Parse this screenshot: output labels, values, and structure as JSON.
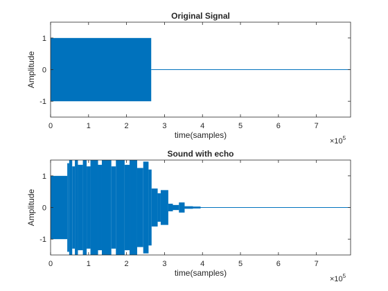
{
  "chart_data": [
    {
      "type": "line",
      "title": "Original Signal",
      "xlabel": "time(samples)",
      "ylabel": "Amplitude",
      "xlim": [
        0,
        790000
      ],
      "ylim": [
        -1.5,
        1.5
      ],
      "xticks": [
        0,
        100000,
        200000,
        300000,
        400000,
        500000,
        600000,
        700000
      ],
      "xtick_labels": [
        "0",
        "1",
        "2",
        "3",
        "4",
        "5",
        "6",
        "7"
      ],
      "yticks": [
        1,
        0,
        -1
      ],
      "ytick_labels": [
        "1",
        "0",
        "-1"
      ],
      "x_exponent": {
        "base": "×10",
        "power": "5"
      },
      "color": "#0072BD",
      "envelope": [
        {
          "x0": 0,
          "x1": 265000,
          "min": -1,
          "max": 1
        }
      ],
      "baseline_end": 790000
    },
    {
      "type": "line",
      "title": "Sound with echo",
      "xlabel": "time(samples)",
      "ylabel": "Amplitude",
      "xlim": [
        0,
        790000
      ],
      "ylim": [
        -1.5,
        1.5
      ],
      "xticks": [
        0,
        100000,
        200000,
        300000,
        400000,
        500000,
        600000,
        700000
      ],
      "xtick_labels": [
        "0",
        "1",
        "2",
        "3",
        "4",
        "5",
        "6",
        "7"
      ],
      "yticks": [
        1,
        0,
        -1
      ],
      "ytick_labels": [
        "1",
        "0",
        "-1"
      ],
      "x_exponent": {
        "base": "×10",
        "power": "5"
      },
      "color": "#0072BD",
      "envelope": [
        {
          "x0": 0,
          "x1": 44000,
          "min": -1,
          "max": 1
        },
        {
          "x0": 44000,
          "x1": 49000,
          "min": -1.4,
          "max": 1.4
        },
        {
          "x0": 49000,
          "x1": 57000,
          "min": -1.5,
          "max": 1.5
        },
        {
          "x0": 57000,
          "x1": 64000,
          "min": -1.3,
          "max": 1.3
        },
        {
          "x0": 64000,
          "x1": 72000,
          "min": -1.5,
          "max": 1.5
        },
        {
          "x0": 72000,
          "x1": 85000,
          "min": -1.35,
          "max": 1.35
        },
        {
          "x0": 85000,
          "x1": 95000,
          "min": -1.5,
          "max": 1.5
        },
        {
          "x0": 95000,
          "x1": 105000,
          "min": -1.3,
          "max": 1.3
        },
        {
          "x0": 105000,
          "x1": 125000,
          "min": -1.5,
          "max": 1.5
        },
        {
          "x0": 125000,
          "x1": 135000,
          "min": -1.35,
          "max": 1.35
        },
        {
          "x0": 135000,
          "x1": 160000,
          "min": -1.5,
          "max": 1.5
        },
        {
          "x0": 160000,
          "x1": 172000,
          "min": -1.3,
          "max": 1.3
        },
        {
          "x0": 172000,
          "x1": 195000,
          "min": -1.5,
          "max": 1.5
        },
        {
          "x0": 195000,
          "x1": 208000,
          "min": -1.35,
          "max": 1.35
        },
        {
          "x0": 208000,
          "x1": 228000,
          "min": -1.5,
          "max": 1.5
        },
        {
          "x0": 228000,
          "x1": 244000,
          "min": -1.25,
          "max": 1.25
        },
        {
          "x0": 244000,
          "x1": 258000,
          "min": -1.45,
          "max": 1.45
        },
        {
          "x0": 258000,
          "x1": 266000,
          "min": -1.2,
          "max": 1.2
        },
        {
          "x0": 266000,
          "x1": 282000,
          "min": -0.6,
          "max": 0.6
        },
        {
          "x0": 282000,
          "x1": 290000,
          "min": -0.45,
          "max": 0.45
        },
        {
          "x0": 290000,
          "x1": 310000,
          "min": -0.55,
          "max": 0.55
        },
        {
          "x0": 310000,
          "x1": 322000,
          "min": -0.12,
          "max": 0.12
        },
        {
          "x0": 322000,
          "x1": 338000,
          "min": -0.08,
          "max": 0.08
        },
        {
          "x0": 338000,
          "x1": 353000,
          "min": -0.16,
          "max": 0.16
        },
        {
          "x0": 353000,
          "x1": 375000,
          "min": -0.04,
          "max": 0.04
        },
        {
          "x0": 375000,
          "x1": 395000,
          "min": -0.03,
          "max": 0.03
        }
      ],
      "baseline_end": 790000
    }
  ]
}
